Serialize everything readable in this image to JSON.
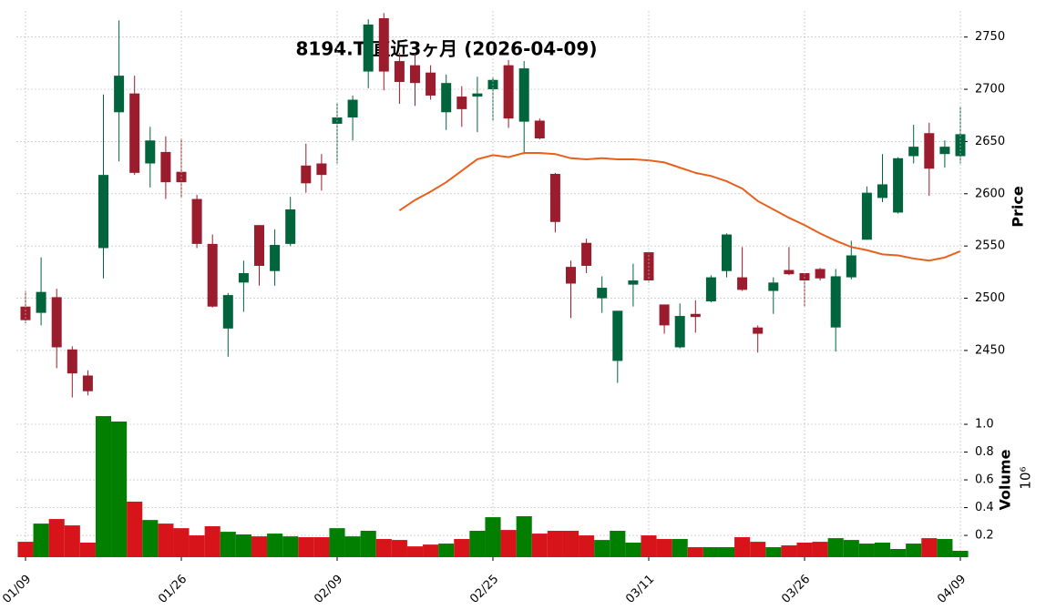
{
  "chart_data": [
    {
      "type": "candlestick",
      "title": "8194.T 直近3ヶ月 (2026-04-09)",
      "y_label": "Price",
      "up_color": "#00643c",
      "down_color": "#9b1c2c",
      "open": [
        2492,
        2486,
        2501,
        2451,
        2426,
        2548,
        2678,
        2696,
        2629,
        2640,
        2621,
        2595,
        2552,
        2471,
        2515,
        2570,
        2526,
        2552,
        2627,
        2629,
        2667,
        2673,
        2717,
        2768,
        2727,
        2723,
        2716,
        2678,
        2693,
        2693,
        2700,
        2723,
        2669,
        2670,
        2619,
        2530,
        2553,
        2500,
        2440,
        2513,
        2544,
        2494,
        2453,
        2485,
        2497,
        2526,
        2520,
        2472,
        2507,
        2527,
        2524,
        2528,
        2472,
        2520,
        2556,
        2596,
        2582,
        2636,
        2658,
        2638,
        2636
      ],
      "high": [
        2507,
        2539,
        2509,
        2454,
        2431,
        2695,
        2766,
        2713,
        2664,
        2655,
        2653,
        2599,
        2561,
        2505,
        2536,
        2570,
        2566,
        2597,
        2648,
        2638,
        2687,
        2694,
        2767,
        2773,
        2735,
        2734,
        2723,
        2714,
        2703,
        2712,
        2712,
        2728,
        2727,
        2672,
        2620,
        2536,
        2557,
        2521,
        2488,
        2533,
        2545,
        2494,
        2495,
        2498,
        2522,
        2562,
        2549,
        2474,
        2520,
        2549,
        2524,
        2529,
        2528,
        2555,
        2607,
        2638,
        2635,
        2666,
        2668,
        2651,
        2683
      ],
      "low": [
        2476,
        2474,
        2433,
        2405,
        2407,
        2519,
        2631,
        2618,
        2606,
        2595,
        2596,
        2548,
        2491,
        2444,
        2487,
        2512,
        2512,
        2550,
        2601,
        2603,
        2629,
        2651,
        2701,
        2699,
        2686,
        2684,
        2690,
        2661,
        2664,
        2659,
        2670,
        2663,
        2638,
        2652,
        2563,
        2481,
        2524,
        2486,
        2419,
        2492,
        2515,
        2466,
        2452,
        2467,
        2496,
        2520,
        2507,
        2448,
        2485,
        2522,
        2492,
        2517,
        2449,
        2518,
        2556,
        2592,
        2581,
        2629,
        2598,
        2625,
        2629
      ],
      "close": [
        2479,
        2506,
        2453,
        2428,
        2411,
        2618,
        2713,
        2620,
        2651,
        2611,
        2611,
        2552,
        2492,
        2503,
        2524,
        2531,
        2551,
        2585,
        2610,
        2618,
        2673,
        2690,
        2762,
        2717,
        2707,
        2706,
        2694,
        2706,
        2681,
        2696,
        2709,
        2672,
        2720,
        2653,
        2573,
        2514,
        2531,
        2510,
        2488,
        2517,
        2517,
        2474,
        2483,
        2482,
        2520,
        2561,
        2508,
        2466,
        2515,
        2523,
        2517,
        2519,
        2521,
        2541,
        2601,
        2609,
        2634,
        2645,
        2624,
        2645,
        2657
      ],
      "overlay_color": "#e8601c",
      "overlay_values": [
        null,
        null,
        null,
        null,
        null,
        null,
        null,
        null,
        null,
        null,
        null,
        null,
        null,
        null,
        null,
        null,
        null,
        null,
        null,
        null,
        null,
        null,
        null,
        null,
        2584,
        2594,
        2602,
        2611,
        2622,
        2633,
        2637,
        2635,
        2639,
        2639,
        2638,
        2634,
        2633,
        2634,
        2633,
        2633,
        2632,
        2630,
        2625,
        2620,
        2617,
        2612,
        2605,
        2593,
        2585,
        2577,
        2570,
        2562,
        2555,
        2549,
        2546,
        2542,
        2541,
        2538,
        2536,
        2539,
        2545
      ],
      "ylim": [
        2402,
        2775
      ],
      "yticks": [
        2450,
        2500,
        2550,
        2600,
        2650,
        2700,
        2750
      ],
      "grid": true
    },
    {
      "type": "bar",
      "y_label": "Volume",
      "y_exponent": "10⁶",
      "up_color": "#007f00",
      "down_color": "#d7141a",
      "categories": [
        "01/09",
        null,
        null,
        null,
        null,
        null,
        null,
        null,
        null,
        null,
        "01/26",
        null,
        null,
        null,
        null,
        null,
        null,
        null,
        null,
        null,
        "02/09",
        null,
        null,
        null,
        null,
        null,
        null,
        null,
        null,
        null,
        "02/25",
        null,
        null,
        null,
        null,
        null,
        null,
        null,
        null,
        null,
        "03/11",
        null,
        null,
        null,
        null,
        null,
        null,
        null,
        null,
        null,
        "03/26",
        null,
        null,
        null,
        null,
        null,
        null,
        null,
        null,
        null,
        "04/09"
      ],
      "values": [
        0.154,
        0.285,
        0.318,
        0.272,
        0.148,
        1.059,
        1.02,
        0.443,
        0.311,
        0.285,
        0.252,
        0.2,
        0.266,
        0.226,
        0.207,
        0.193,
        0.213,
        0.193,
        0.187,
        0.187,
        0.252,
        0.193,
        0.233,
        0.174,
        0.167,
        0.121,
        0.134,
        0.141,
        0.174,
        0.233,
        0.331,
        0.239,
        0.338,
        0.213,
        0.233,
        0.233,
        0.2,
        0.167,
        0.233,
        0.148,
        0.2,
        0.174,
        0.174,
        0.115,
        0.115,
        0.115,
        0.187,
        0.154,
        0.115,
        0.128,
        0.148,
        0.154,
        0.18,
        0.167,
        0.141,
        0.148,
        0.102,
        0.141,
        0.18,
        0.174,
        0.089
      ],
      "ylim": [
        0.043,
        1.138
      ],
      "yticks": [
        0.2,
        0.4,
        0.6,
        0.8,
        {
          "value": 1,
          "label": "1.0"
        }
      ],
      "grid": true
    }
  ]
}
